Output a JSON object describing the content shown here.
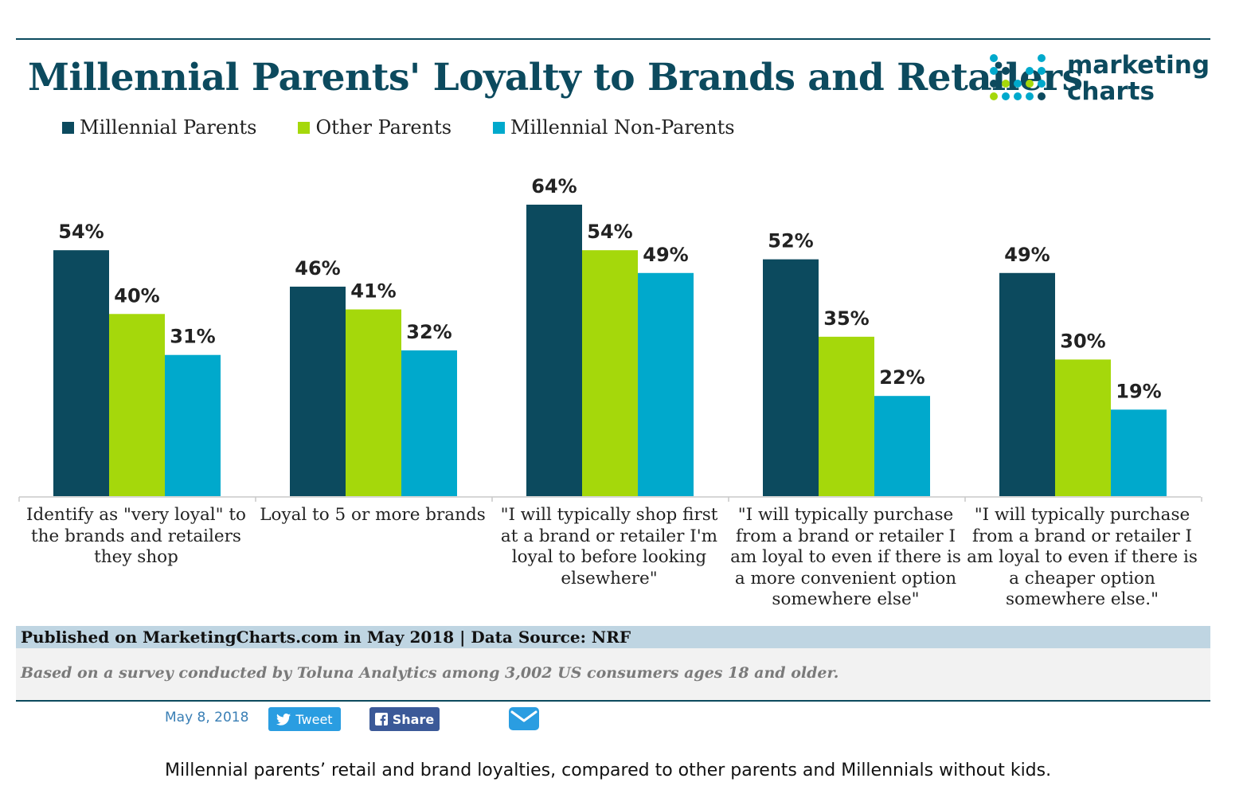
{
  "chart_data": {
    "type": "bar",
    "title": "Millennial Parents' Loyalty to Brands and Retailers",
    "categories": [
      "Identify as \"very loyal\" to the brands and retailers they shop",
      "Loyal to 5 or more brands",
      "\"I will typically shop first at a brand or retailer I'm loyal to before looking elsewhere\"",
      "\"I will typically purchase from a brand or retailer I am loyal to even if there is a more convenient option somewhere else\"",
      "\"I will typically purchase from a brand or retailer I am loyal to even if there is a cheaper option somewhere else.\""
    ],
    "series": [
      {
        "name": "Millennial Parents",
        "color": "#0c4a5e",
        "values": [
          54,
          46,
          64,
          52,
          49
        ]
      },
      {
        "name": "Other Parents",
        "color": "#a5d80b",
        "values": [
          40,
          41,
          54,
          35,
          30
        ]
      },
      {
        "name": "Millennial Non-Parents",
        "color": "#00a9cc",
        "values": [
          31,
          32,
          49,
          22,
          19
        ]
      }
    ],
    "value_suffix": "%",
    "ylim": [
      0,
      70
    ],
    "xlabel": "",
    "ylabel": "",
    "legend_position": "top-left",
    "grid": false
  },
  "logo": {
    "line1": "marketing",
    "line2": "charts"
  },
  "footer": {
    "published": "Published on MarketingCharts.com in May 2018 | Data Source: NRF",
    "note": "Based on a survey conducted by Toluna Analytics among 3,002 US consumers ages 18 and older."
  },
  "meta": {
    "date": "May 8, 2018",
    "tweet_label": "Tweet",
    "share_label": "Share"
  },
  "caption": "Millennial parents’ retail and brand loyalties, compared to other parents and Millennials without kids.",
  "colors": {
    "dark": "#0c4a5e",
    "green": "#a5d80b",
    "cyan": "#00a9cc"
  }
}
